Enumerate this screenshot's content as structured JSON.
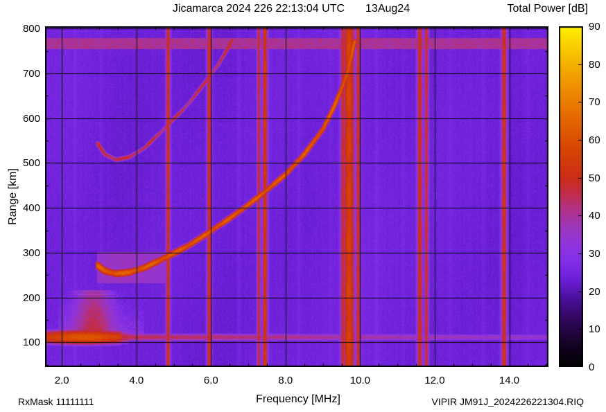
{
  "header": {
    "title": "Jicamarca 2024 226 22:13:04 UTC",
    "date": "13Aug24"
  },
  "footer": {
    "rxmask": "RxMask 11111111",
    "file": "VIPIR  JM91J_2024226221304.RIQ"
  },
  "chart_data": {
    "type": "heatmap",
    "title": "Jicamarca 2024 226 22:13:04 UTC 13Aug24",
    "xlabel": "Frequency [MHz]",
    "ylabel": "Range [km]",
    "zlabel": "Total Power [dB]",
    "x_range": [
      1.55,
      15.05
    ],
    "y_range": [
      45,
      805
    ],
    "z_range": [
      0,
      90
    ],
    "x_ticks": [
      {
        "v": 2,
        "label": "2.0"
      },
      {
        "v": 4,
        "label": "4.0"
      },
      {
        "v": 6,
        "label": "6.0"
      },
      {
        "v": 8,
        "label": "8.0"
      },
      {
        "v": 10,
        "label": "10.0"
      },
      {
        "v": 12,
        "label": "12.0"
      },
      {
        "v": 14,
        "label": "14.0"
      }
    ],
    "y_ticks": [
      {
        "v": 100,
        "label": "100"
      },
      {
        "v": 200,
        "label": "200"
      },
      {
        "v": 300,
        "label": "300"
      },
      {
        "v": 400,
        "label": "400"
      },
      {
        "v": 500,
        "label": "500"
      },
      {
        "v": 600,
        "label": "600"
      },
      {
        "v": 700,
        "label": "700"
      },
      {
        "v": 800,
        "label": "800"
      }
    ],
    "x_minor_step": 0.5,
    "y_minor_step": 50,
    "colorbar_ticks": [
      0,
      10,
      20,
      30,
      40,
      50,
      60,
      70,
      80,
      90
    ],
    "grid": true,
    "background_db": 24,
    "palette": [
      [
        0,
        "#000000"
      ],
      [
        6,
        "#150325"
      ],
      [
        12,
        "#2e0758"
      ],
      [
        18,
        "#4a0f9a"
      ],
      [
        23,
        "#6b1fd6"
      ],
      [
        27,
        "#7e2ce6"
      ],
      [
        32,
        "#8f35e0"
      ],
      [
        37,
        "#9d36bb"
      ],
      [
        42,
        "#b23184"
      ],
      [
        46,
        "#c22c48"
      ],
      [
        50,
        "#cb2d18"
      ],
      [
        57,
        "#d54404"
      ],
      [
        64,
        "#e26000"
      ],
      [
        72,
        "#ec8600"
      ],
      [
        80,
        "#f4b000"
      ],
      [
        86,
        "#fad600"
      ],
      [
        90,
        "#fff000"
      ]
    ],
    "features": {
      "f_trace_first_hop_f_km": [
        [
          2.95,
          272
        ],
        [
          3.15,
          260
        ],
        [
          3.45,
          254
        ],
        [
          3.8,
          257
        ],
        [
          4.2,
          267
        ],
        [
          4.8,
          291
        ],
        [
          5.4,
          317
        ],
        [
          5.9,
          344
        ],
        [
          6.5,
          378
        ],
        [
          7.0,
          408
        ],
        [
          7.5,
          441
        ],
        [
          8.0,
          476
        ],
        [
          8.5,
          521
        ],
        [
          9.0,
          577
        ],
        [
          9.3,
          628
        ],
        [
          9.5,
          668
        ],
        [
          9.65,
          703
        ],
        [
          9.76,
          740
        ],
        [
          9.84,
          772
        ]
      ],
      "f_trace_second_hop_f_km": [
        [
          2.95,
          544
        ],
        [
          3.15,
          520
        ],
        [
          3.45,
          508
        ],
        [
          3.8,
          514
        ],
        [
          4.2,
          534
        ],
        [
          4.8,
          582
        ],
        [
          5.4,
          634
        ],
        [
          5.9,
          688
        ],
        [
          6.2,
          722
        ],
        [
          6.45,
          758
        ],
        [
          6.55,
          775
        ]
      ],
      "trace_peak_db": 61,
      "second_hop_peak_db": 45,
      "e_layer": {
        "height_km": 112,
        "strong_freq_max_mhz": 3.6,
        "strong_db": 60,
        "weak_db": 42,
        "spread_top_km": 215,
        "spread_freq_center_mhz": 2.85
      },
      "rfi_bands_mhz_width_db": [
        [
          4.85,
          0.055,
          53
        ],
        [
          5.95,
          0.055,
          53
        ],
        [
          7.28,
          0.045,
          50
        ],
        [
          7.45,
          0.07,
          54
        ],
        [
          9.53,
          0.055,
          50
        ],
        [
          9.7,
          0.17,
          56
        ],
        [
          9.95,
          0.06,
          51
        ],
        [
          11.6,
          0.07,
          52
        ],
        [
          11.78,
          0.055,
          50
        ],
        [
          13.86,
          0.07,
          53
        ]
      ],
      "weak_columns_mhz_db": [
        [
          2.35,
          1.4
        ],
        [
          3.05,
          1.2
        ],
        [
          6.1,
          1.2
        ],
        [
          6.75,
          1.8
        ],
        [
          8.35,
          1.6
        ],
        [
          9.2,
          1.2
        ],
        [
          10.45,
          1.8
        ],
        [
          11.15,
          1.4
        ],
        [
          12.42,
          1.6
        ],
        [
          13.3,
          1.4
        ],
        [
          14.5,
          1.4
        ]
      ],
      "top_band_km": [
        755,
        778
      ],
      "top_band_db": 40
    }
  }
}
